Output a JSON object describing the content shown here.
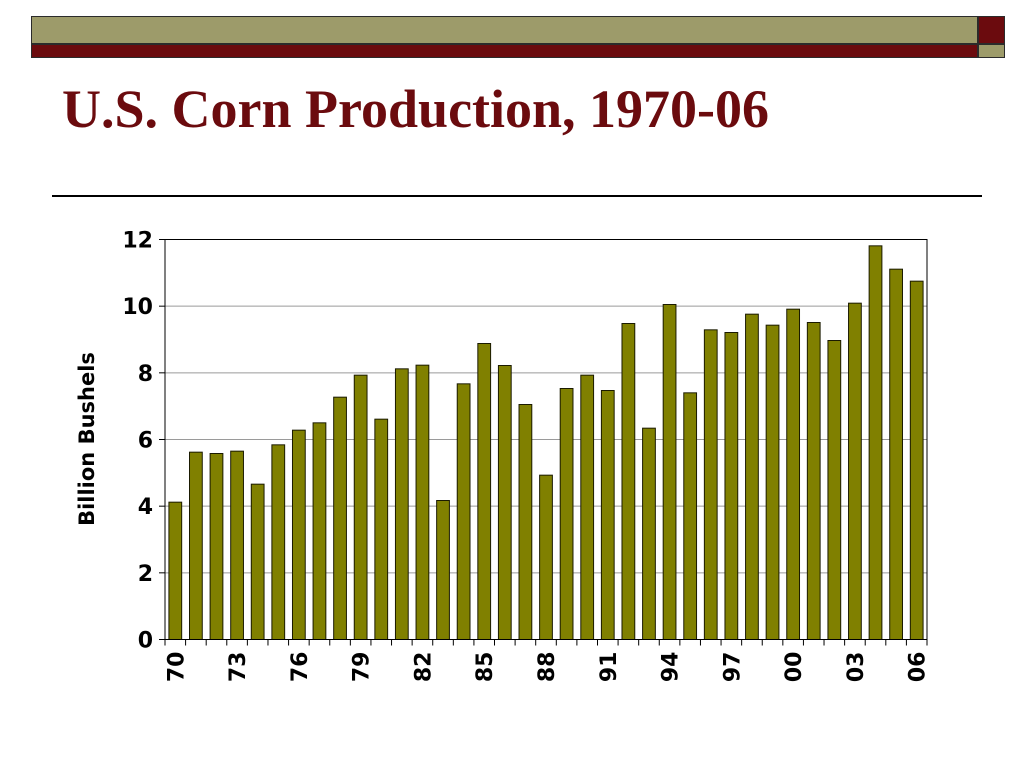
{
  "slide": {
    "title": "U.S. Corn Production, 1970-06",
    "colors": {
      "maroon": "#6b0b0e",
      "olive": "#9d9b6a",
      "bar": "#808000",
      "bar_outline": "#1a1a00"
    }
  },
  "chart_data": {
    "type": "bar",
    "title": "",
    "xlabel": "",
    "ylabel": "Billion Bushels",
    "ylim": [
      0,
      12
    ],
    "yticks": [
      0,
      2,
      4,
      6,
      8,
      10,
      12
    ],
    "grid": true,
    "legend": "none",
    "x_tick_labels": [
      "70",
      "73",
      "76",
      "79",
      "82",
      "85",
      "88",
      "91",
      "94",
      "97",
      "00",
      "03",
      "06"
    ],
    "categories": [
      "1970",
      "1971",
      "1972",
      "1973",
      "1974",
      "1975",
      "1976",
      "1977",
      "1978",
      "1979",
      "1980",
      "1981",
      "1982",
      "1983",
      "1984",
      "1985",
      "1986",
      "1987",
      "1988",
      "1989",
      "1990",
      "1991",
      "1992",
      "1993",
      "1994",
      "1995",
      "1996",
      "1997",
      "1998",
      "1999",
      "2000",
      "2001",
      "2002",
      "2003",
      "2004",
      "2005",
      "2006"
    ],
    "values": [
      4.12,
      5.62,
      5.58,
      5.65,
      4.66,
      5.84,
      6.28,
      6.5,
      7.27,
      7.93,
      6.61,
      8.12,
      8.23,
      4.17,
      7.67,
      8.88,
      8.22,
      7.05,
      4.93,
      7.53,
      7.93,
      7.47,
      9.48,
      6.34,
      10.05,
      7.4,
      9.29,
      9.21,
      9.76,
      9.43,
      9.91,
      9.51,
      8.97,
      10.09,
      11.81,
      11.11,
      10.75
    ]
  }
}
